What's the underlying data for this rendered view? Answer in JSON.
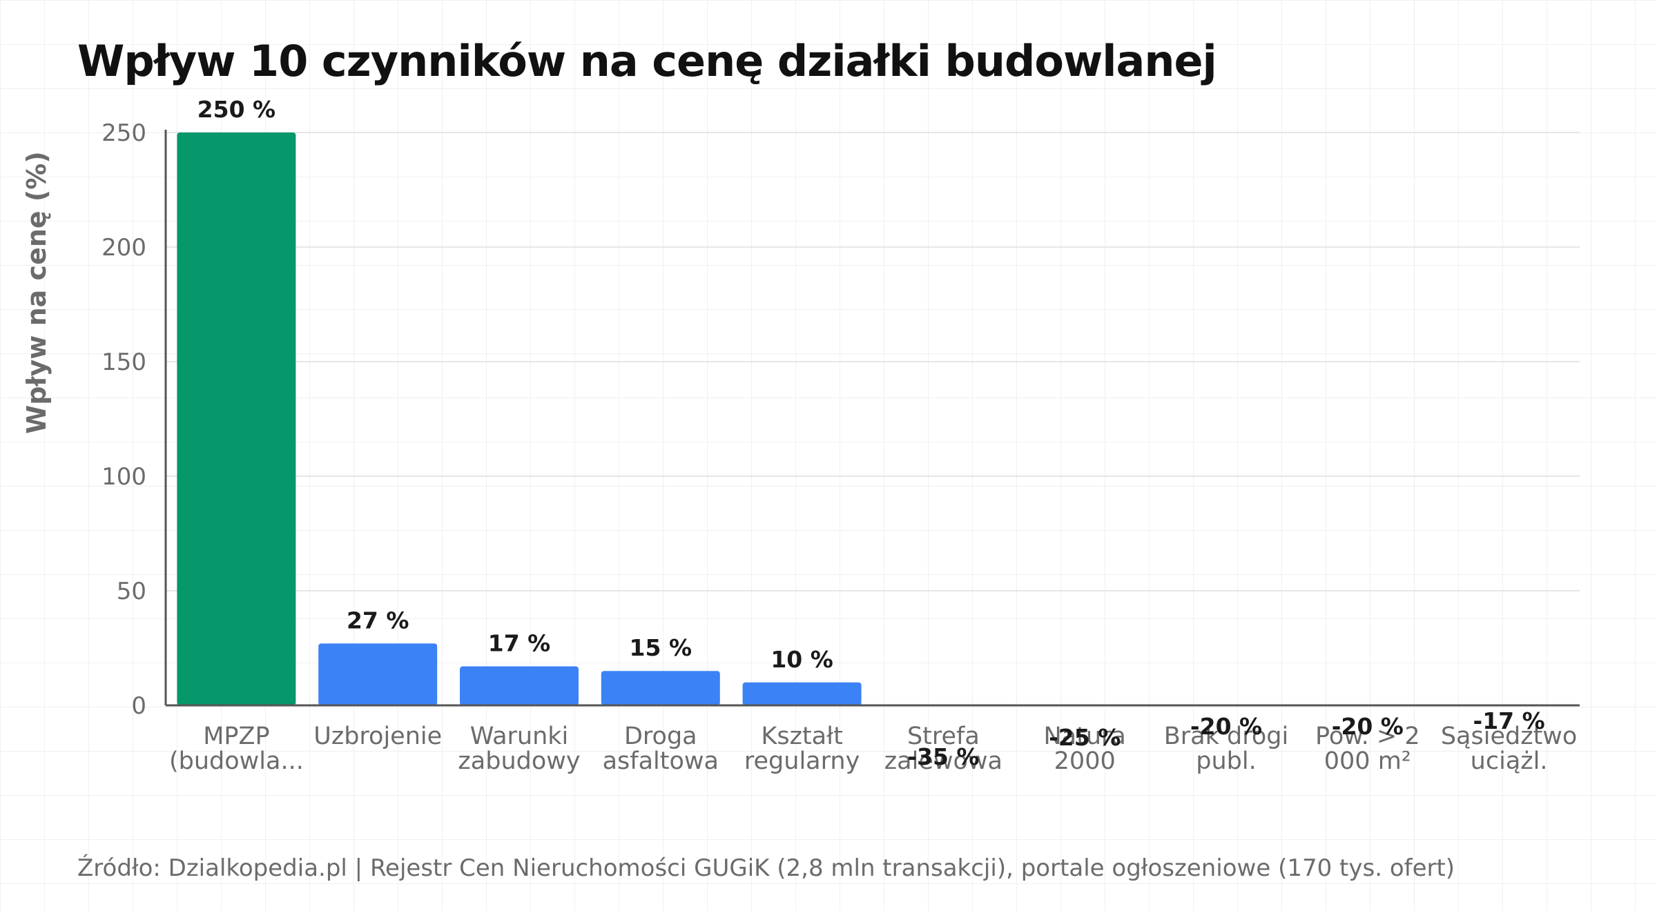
{
  "title": "Wpływ 10 czynników na cenę działki budowlanej",
  "source": "Źródło: Dzialkopedia.pl | Rejestr Cen Nieruchomości GUGiK (2,8 mln transakcji), portale ogłoszeniowe (170 tys. ofert)",
  "colors": {
    "highlight": "#06976a",
    "default": "#3b82f6",
    "axis": "#555555",
    "grid": "#e6e6e6"
  },
  "chart_data": {
    "type": "bar",
    "categories": [
      [
        "MPZP",
        "(budowla..."
      ],
      [
        "Uzbrojenie"
      ],
      [
        "Warunki",
        "zabudowy"
      ],
      [
        "Droga",
        "asfaltowa"
      ],
      [
        "Kształt",
        "regularny"
      ],
      [
        "Strefa",
        "zalewowa"
      ],
      [
        "Natura",
        "2000"
      ],
      [
        "Brak drogi",
        "publ."
      ],
      [
        "Pow. > 2",
        "000 m²"
      ],
      [
        "Sąsiedztwo",
        "uciążl."
      ]
    ],
    "values": [
      250,
      27,
      17,
      15,
      10,
      -35,
      -25,
      -20,
      -20,
      -17
    ],
    "data_labels": [
      "250 %",
      "27 %",
      "17 %",
      "15 %",
      "10 %",
      "-35 %",
      "-25 %",
      "-20 %",
      "-20 %",
      "-17 %"
    ],
    "highlight_index": 0,
    "ylabel": "Wpływ na cenę (%)",
    "ylim": [
      0,
      250
    ],
    "yticks": [
      0,
      50,
      100,
      150,
      200,
      250
    ],
    "grid": true
  }
}
